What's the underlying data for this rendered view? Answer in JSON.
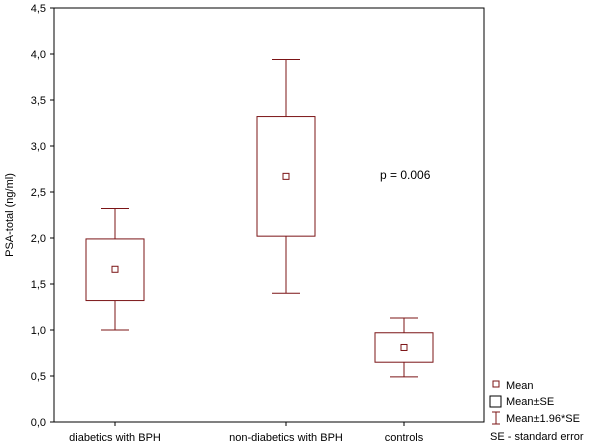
{
  "chart_data": {
    "type": "box",
    "ylabel": "PSA-total (ng/ml)",
    "ylim": [
      0,
      4.5
    ],
    "yticks": [
      "0,0",
      "0,5",
      "1,0",
      "1,5",
      "2,0",
      "2,5",
      "3,0",
      "3,5",
      "4,0",
      "4,5"
    ],
    "grid": false,
    "categories": [
      "diabetics with BPH",
      "non-diabetics with BPH",
      "controls"
    ],
    "series": [
      {
        "category": "diabetics with BPH",
        "mean": 1.66,
        "se_low": 1.32,
        "se_high": 1.99,
        "ci_low": 1.0,
        "ci_high": 2.32
      },
      {
        "category": "non-diabetics with BPH",
        "mean": 2.67,
        "se_low": 2.02,
        "se_high": 3.32,
        "ci_low": 1.4,
        "ci_high": 3.94
      },
      {
        "category": "controls",
        "mean": 0.81,
        "se_low": 0.65,
        "se_high": 0.97,
        "ci_low": 0.49,
        "ci_high": 1.13
      }
    ],
    "annotation": "p = 0.006",
    "legend": {
      "placement": "bottom-right",
      "items": [
        "Mean",
        "Mean±SE",
        "Mean±1.96*SE",
        "SE - standard error"
      ]
    },
    "color": "#7b1416"
  }
}
